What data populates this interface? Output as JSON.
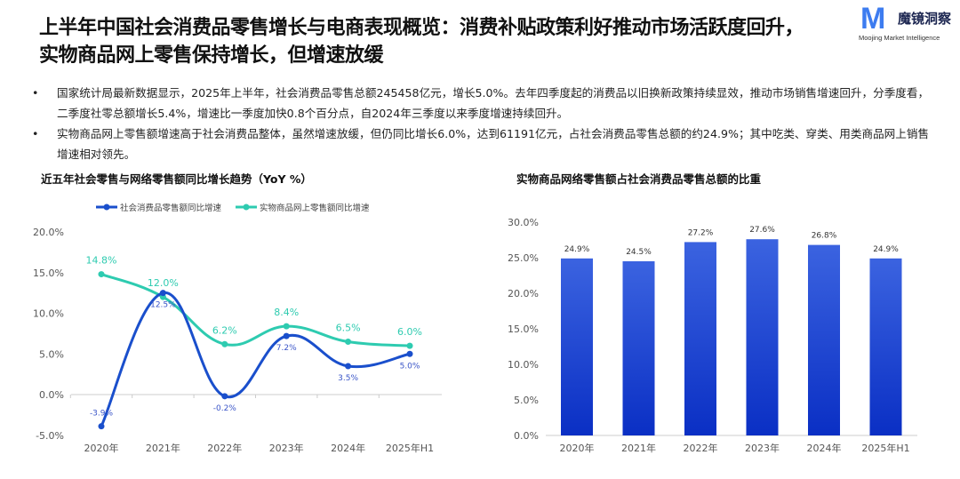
{
  "title_line1": "上半年中国社会消费品零售增长与电商表现概览：消费补贴政策利好推动市场活跃度回升，",
  "title_line2": "实物商品网上零售保持增长，但增速放缓",
  "logo": {
    "name": "魔镜洞察",
    "sub": "Moojing Market Intelligence"
  },
  "bullets": [
    "国家统计局最新数据显示，2025年上半年，社会消费品零售总额245458亿元，增长5.0%。去年四季度起的消费品以旧换新政策持续显效，推动市场销售增速回升，分季度看，二季度社零总额增长5.4%，增速比一季度加快0.8个百分点，自2024年三季度以来季度增速持续回升。",
    "实物商品网上零售额增速高于社会消费品整体，虽然增速放缓，但仍同比增长6.0%，达到61191亿元，占社会消费品零售总额的约24.9%；其中吃类、穿类、用类商品网上销售增速相对领先。"
  ],
  "bullet_symbol": "•",
  "chart_data": [
    {
      "type": "line",
      "title": "近五年社会零售与网络零售额同比增长趋势（YoY %）",
      "categories": [
        "2020年",
        "2021年",
        "2022年",
        "2023年",
        "2024年",
        "2025年H1"
      ],
      "ylim": [
        -5,
        20
      ],
      "yticks": [
        "20.0%",
        "15.0%",
        "10.0%",
        "5.0%",
        "0.0%",
        "-5.0%"
      ],
      "ytick_values": [
        20,
        15,
        10,
        5,
        0,
        -5
      ],
      "legend": "top",
      "series": [
        {
          "name": "社会消费品零售额同比增速",
          "color": "#1a4fcc",
          "values": [
            -3.9,
            12.5,
            -0.2,
            7.2,
            3.5,
            5.0
          ],
          "labels": [
            "-3.9%",
            "12.5%",
            "-0.2%",
            "7.2%",
            "3.5%",
            "5.0%"
          ]
        },
        {
          "name": "实物商品网上零售额同比增速",
          "color": "#2ecbb0",
          "values": [
            14.8,
            12.0,
            6.2,
            8.4,
            6.5,
            6.0
          ],
          "labels": [
            "14.8%",
            "12.0%",
            "6.2%",
            "8.4%",
            "6.5%",
            "6.0%"
          ]
        }
      ]
    },
    {
      "type": "bar",
      "title": "实物商品网络零售额占社会消费品零售总额的比重",
      "categories": [
        "2020年",
        "2021年",
        "2022年",
        "2023年",
        "2024年",
        "2025年H1"
      ],
      "values": [
        24.9,
        24.5,
        27.2,
        27.6,
        26.8,
        24.9
      ],
      "labels": [
        "24.9%",
        "24.5%",
        "27.2%",
        "27.6%",
        "26.8%",
        "24.9%"
      ],
      "ylim": [
        0,
        30
      ],
      "yticks": [
        "30.0%",
        "25.0%",
        "20.0%",
        "15.0%",
        "10.0%",
        "5.0%",
        "0.0%"
      ],
      "ytick_values": [
        30,
        25,
        20,
        15,
        10,
        5,
        0
      ],
      "color_top": "#3b63e0",
      "color_bottom": "#0a2fc4"
    }
  ]
}
